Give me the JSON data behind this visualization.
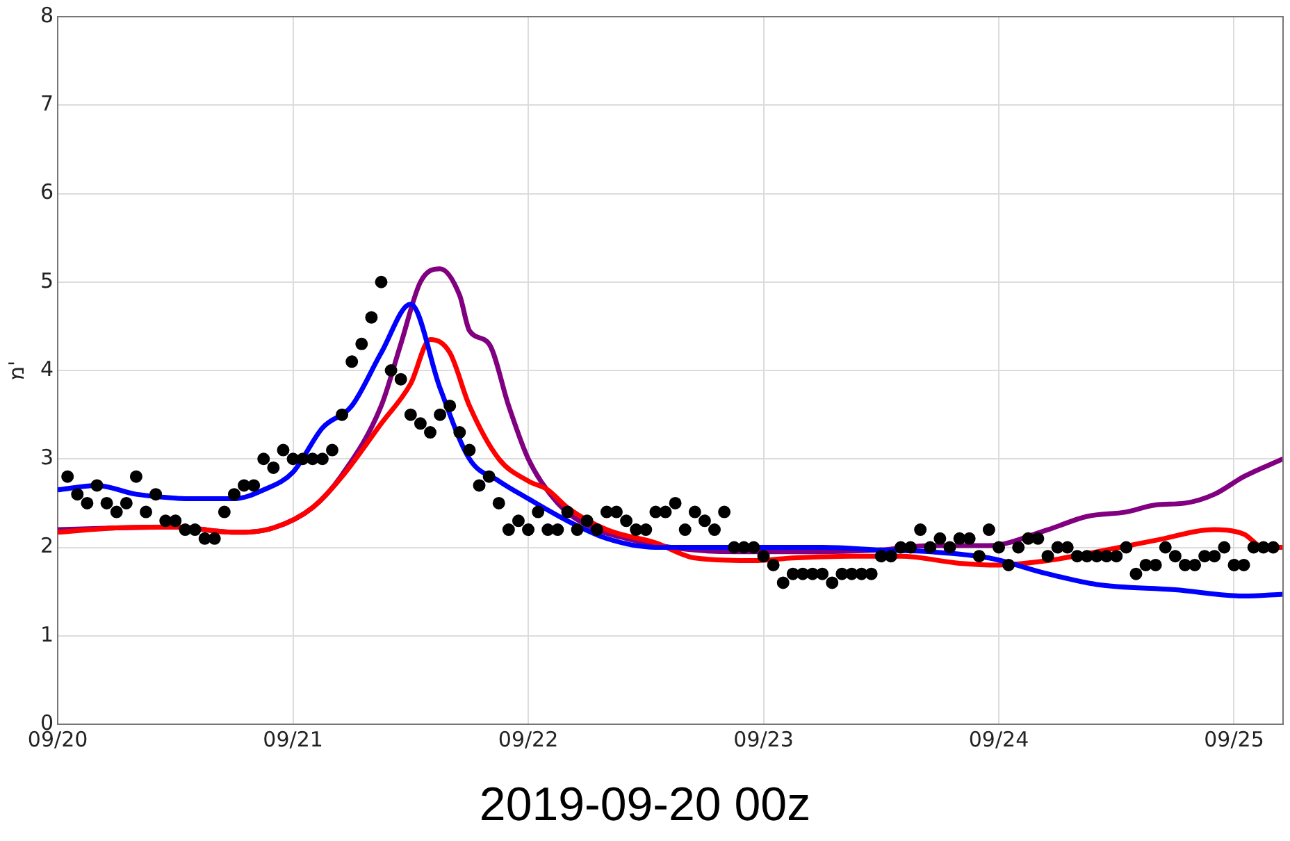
{
  "chart_data": {
    "type": "line",
    "ylabel": "מ'",
    "annotations": [
      "2019-09-20 00z"
    ],
    "xlim": [
      "2019-09-20T00:00",
      "2019-09-25T05:00"
    ],
    "xticks": [
      {
        "value": "2019-09-20",
        "label": "09/20"
      },
      {
        "value": "2019-09-21",
        "label": "09/21"
      },
      {
        "value": "2019-09-22",
        "label": "09/22"
      },
      {
        "value": "2019-09-23",
        "label": "09/23"
      },
      {
        "value": "2019-09-24",
        "label": "09/24"
      },
      {
        "value": "2019-09-25",
        "label": "09/25"
      }
    ],
    "ylim": [
      0,
      8
    ],
    "yticks": [
      0,
      1,
      2,
      3,
      4,
      5,
      6,
      7,
      8
    ],
    "grid": true,
    "legend": false,
    "series": [
      {
        "type": "scatter",
        "marker": "circle",
        "color": "#000000",
        "x": [
          "2019-09-20T01:00",
          "2019-09-20T02:00",
          "2019-09-20T03:00",
          "2019-09-20T04:00",
          "2019-09-20T05:00",
          "2019-09-20T06:00",
          "2019-09-20T07:00",
          "2019-09-20T08:00",
          "2019-09-20T09:00",
          "2019-09-20T10:00",
          "2019-09-20T11:00",
          "2019-09-20T12:00",
          "2019-09-20T13:00",
          "2019-09-20T14:00",
          "2019-09-20T15:00",
          "2019-09-20T16:00",
          "2019-09-20T17:00",
          "2019-09-20T18:00",
          "2019-09-20T19:00",
          "2019-09-20T20:00",
          "2019-09-20T21:00",
          "2019-09-20T22:00",
          "2019-09-20T23:00",
          "2019-09-21T00:00",
          "2019-09-21T01:00",
          "2019-09-21T02:00",
          "2019-09-21T03:00",
          "2019-09-21T04:00",
          "2019-09-21T05:00",
          "2019-09-21T06:00",
          "2019-09-21T07:00",
          "2019-09-21T08:00",
          "2019-09-21T09:00",
          "2019-09-21T10:00",
          "2019-09-21T11:00",
          "2019-09-21T12:00",
          "2019-09-21T13:00",
          "2019-09-21T14:00",
          "2019-09-21T15:00",
          "2019-09-21T16:00",
          "2019-09-21T17:00",
          "2019-09-21T18:00",
          "2019-09-21T19:00",
          "2019-09-21T20:00",
          "2019-09-21T21:00",
          "2019-09-21T22:00",
          "2019-09-21T23:00",
          "2019-09-22T00:00",
          "2019-09-22T01:00",
          "2019-09-22T02:00",
          "2019-09-22T03:00",
          "2019-09-22T04:00",
          "2019-09-22T05:00",
          "2019-09-22T06:00",
          "2019-09-22T07:00",
          "2019-09-22T08:00",
          "2019-09-22T09:00",
          "2019-09-22T10:00",
          "2019-09-22T11:00",
          "2019-09-22T12:00",
          "2019-09-22T13:00",
          "2019-09-22T14:00",
          "2019-09-22T15:00",
          "2019-09-22T16:00",
          "2019-09-22T17:00",
          "2019-09-22T18:00",
          "2019-09-22T19:00",
          "2019-09-22T20:00",
          "2019-09-22T21:00",
          "2019-09-22T22:00",
          "2019-09-22T23:00",
          "2019-09-23T00:00",
          "2019-09-23T01:00",
          "2019-09-23T02:00",
          "2019-09-23T03:00",
          "2019-09-23T04:00",
          "2019-09-23T05:00",
          "2019-09-23T06:00",
          "2019-09-23T07:00",
          "2019-09-23T08:00",
          "2019-09-23T09:00",
          "2019-09-23T10:00",
          "2019-09-23T11:00",
          "2019-09-23T12:00",
          "2019-09-23T13:00",
          "2019-09-23T14:00",
          "2019-09-23T15:00",
          "2019-09-23T16:00",
          "2019-09-23T17:00",
          "2019-09-23T18:00",
          "2019-09-23T19:00",
          "2019-09-23T20:00",
          "2019-09-23T21:00",
          "2019-09-23T22:00",
          "2019-09-23T23:00",
          "2019-09-24T00:00",
          "2019-09-24T01:00",
          "2019-09-24T02:00",
          "2019-09-24T03:00",
          "2019-09-24T04:00",
          "2019-09-24T05:00",
          "2019-09-24T06:00",
          "2019-09-24T07:00",
          "2019-09-24T08:00",
          "2019-09-24T09:00",
          "2019-09-24T10:00",
          "2019-09-24T11:00",
          "2019-09-24T12:00",
          "2019-09-24T13:00",
          "2019-09-24T14:00",
          "2019-09-24T15:00",
          "2019-09-24T16:00",
          "2019-09-24T17:00",
          "2019-09-24T18:00",
          "2019-09-24T19:00",
          "2019-09-24T20:00",
          "2019-09-24T21:00",
          "2019-09-24T22:00",
          "2019-09-24T23:00",
          "2019-09-25T00:00",
          "2019-09-25T01:00",
          "2019-09-25T02:00",
          "2019-09-25T03:00",
          "2019-09-25T04:00"
        ],
        "values": [
          2.8,
          2.6,
          2.5,
          2.7,
          2.5,
          2.4,
          2.5,
          2.8,
          2.4,
          2.6,
          2.3,
          2.3,
          2.2,
          2.2,
          2.1,
          2.1,
          2.4,
          2.6,
          2.7,
          2.7,
          3.0,
          2.9,
          3.1,
          3.0,
          3.0,
          3.0,
          3.0,
          3.1,
          3.5,
          4.1,
          4.3,
          4.6,
          5.0,
          4.0,
          3.9,
          3.5,
          3.4,
          3.3,
          3.5,
          3.6,
          3.3,
          3.1,
          2.7,
          2.8,
          2.5,
          2.2,
          2.3,
          2.2,
          2.4,
          2.2,
          2.2,
          2.4,
          2.2,
          2.3,
          2.2,
          2.4,
          2.4,
          2.3,
          2.2,
          2.2,
          2.4,
          2.4,
          2.5,
          2.2,
          2.4,
          2.3,
          2.2,
          2.4,
          2.0,
          2.0,
          2.0,
          1.9,
          1.8,
          1.6,
          1.7,
          1.7,
          1.7,
          1.7,
          1.6,
          1.7,
          1.7,
          1.7,
          1.7,
          1.9,
          1.9,
          2.0,
          2.0,
          2.2,
          2.0,
          2.1,
          2.0,
          2.1,
          2.1,
          1.9,
          2.2,
          2.0,
          1.8,
          2.0,
          2.1,
          2.1,
          1.9,
          2.0,
          2.0,
          1.9,
          1.9,
          1.9,
          1.9,
          1.9,
          2.0,
          1.7,
          1.8,
          1.8,
          2.0,
          1.9,
          1.8,
          1.8,
          1.9,
          1.9,
          2.0,
          1.8,
          1.8,
          2.0,
          2.0,
          2.0
        ]
      },
      {
        "color": "#0000ff",
        "x": [
          "2019-09-20T00:00",
          "2019-09-20T04:00",
          "2019-09-20T08:00",
          "2019-09-20T14:00",
          "2019-09-20T18:00",
          "2019-09-20T21:00",
          "2019-09-21T00:00",
          "2019-09-21T03:00",
          "2019-09-21T06:00",
          "2019-09-21T09:00",
          "2019-09-21T12:00",
          "2019-09-21T15:00",
          "2019-09-21T18:00",
          "2019-09-21T21:00",
          "2019-09-22T00:00",
          "2019-09-22T04:00",
          "2019-09-22T08:00",
          "2019-09-22T13:00",
          "2019-09-22T18:00",
          "2019-09-23T00:00",
          "2019-09-23T06:00",
          "2019-09-23T12:00",
          "2019-09-23T17:00",
          "2019-09-23T23:00",
          "2019-09-24T05:00",
          "2019-09-24T10:00",
          "2019-09-24T18:00",
          "2019-09-25T01:00",
          "2019-09-25T05:00"
        ],
        "values": [
          2.65,
          2.7,
          2.6,
          2.55,
          2.55,
          2.65,
          2.85,
          3.35,
          3.6,
          4.2,
          4.75,
          3.8,
          3.0,
          2.75,
          2.55,
          2.3,
          2.1,
          2.0,
          2.0,
          2.0,
          2.0,
          1.97,
          1.95,
          1.88,
          1.7,
          1.58,
          1.52,
          1.45,
          1.47
        ]
      },
      {
        "color": "#ff0000",
        "x": [
          "2019-09-20T00:00",
          "2019-09-20T06:00",
          "2019-09-20T12:00",
          "2019-09-20T18:00",
          "2019-09-20T22:00",
          "2019-09-21T02:00",
          "2019-09-21T05:00",
          "2019-09-21T09:00",
          "2019-09-21T12:00",
          "2019-09-21T14:00",
          "2019-09-21T16:00",
          "2019-09-21T18:00",
          "2019-09-21T21:00",
          "2019-09-22T00:00",
          "2019-09-22T02:00",
          "2019-09-22T04:00",
          "2019-09-22T08:00",
          "2019-09-22T13:00",
          "2019-09-22T17:00",
          "2019-09-22T23:00",
          "2019-09-23T03:00",
          "2019-09-23T09:00",
          "2019-09-23T14:00",
          "2019-09-23T20:00",
          "2019-09-24T00:00",
          "2019-09-24T05:00",
          "2019-09-24T10:00",
          "2019-09-24T16:00",
          "2019-09-24T22:00",
          "2019-09-25T01:00",
          "2019-09-25T03:00",
          "2019-09-25T05:00"
        ],
        "values": [
          2.17,
          2.22,
          2.23,
          2.17,
          2.22,
          2.45,
          2.8,
          3.4,
          3.85,
          4.35,
          4.2,
          3.6,
          3.0,
          2.75,
          2.65,
          2.45,
          2.2,
          2.05,
          1.88,
          1.85,
          1.88,
          1.9,
          1.9,
          1.82,
          1.8,
          1.85,
          1.95,
          2.08,
          2.2,
          2.15,
          2.0,
          2.0
        ]
      },
      {
        "color": "#800080",
        "x": [
          "2019-09-20T00:00",
          "2019-09-20T06:00",
          "2019-09-20T12:00",
          "2019-09-20T18:00",
          "2019-09-20T22:00",
          "2019-09-21T02:00",
          "2019-09-21T05:00",
          "2019-09-21T09:00",
          "2019-09-21T11:00",
          "2019-09-21T13:00",
          "2019-09-21T15:00",
          "2019-09-21T17:00",
          "2019-09-21T18:00",
          "2019-09-21T20:00",
          "2019-09-21T22:00",
          "2019-09-22T00:00",
          "2019-09-22T03:00",
          "2019-09-22T06:00",
          "2019-09-22T10:00",
          "2019-09-22T16:00",
          "2019-09-22T21:00",
          "2019-09-23T03:00",
          "2019-09-23T12:00",
          "2019-09-23T17:00",
          "2019-09-23T23:00",
          "2019-09-24T05:00",
          "2019-09-24T09:00",
          "2019-09-24T13:00",
          "2019-09-24T16:00",
          "2019-09-24T19:00",
          "2019-09-24T22:00",
          "2019-09-25T01:00",
          "2019-09-25T05:00"
        ],
        "values": [
          2.2,
          2.22,
          2.23,
          2.17,
          2.22,
          2.45,
          2.82,
          3.6,
          4.3,
          5.0,
          5.15,
          4.85,
          4.45,
          4.3,
          3.6,
          3.0,
          2.5,
          2.25,
          2.1,
          1.98,
          1.95,
          1.95,
          1.97,
          2.02,
          2.02,
          2.2,
          2.35,
          2.4,
          2.48,
          2.5,
          2.6,
          2.8,
          3.0
        ]
      }
    ]
  }
}
